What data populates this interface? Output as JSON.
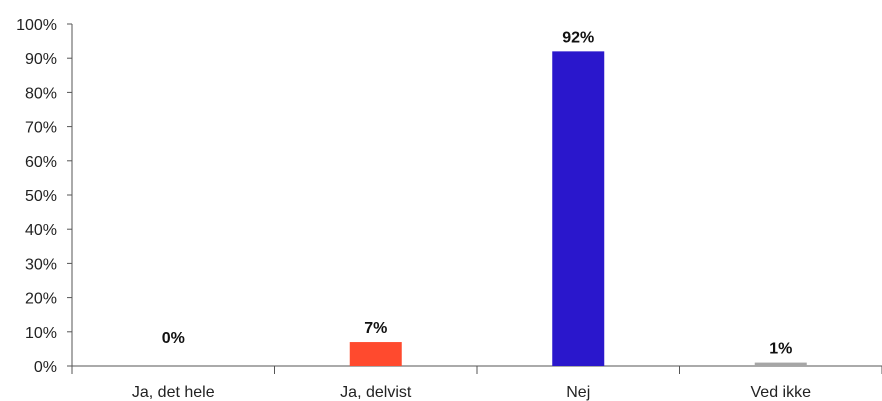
{
  "chart_data": {
    "type": "bar",
    "categories": [
      "Ja, det hele",
      "Ja, delvist",
      "Nej",
      "Ved ikke"
    ],
    "values": [
      0,
      7,
      92,
      1
    ],
    "data_labels": [
      "0%",
      "7%",
      "92%",
      "1%"
    ],
    "bar_colors": [
      "#ff4a2e",
      "#ff4a2e",
      "#2a17cc",
      "#a6a6a6"
    ],
    "ylim": [
      0,
      100
    ],
    "yticks": [
      0,
      10,
      20,
      30,
      40,
      50,
      60,
      70,
      80,
      90,
      100
    ],
    "ytick_labels": [
      "0%",
      "10%",
      "20%",
      "30%",
      "40%",
      "50%",
      "60%",
      "70%",
      "80%",
      "90%",
      "100%"
    ],
    "grid": false,
    "legend": "none"
  }
}
